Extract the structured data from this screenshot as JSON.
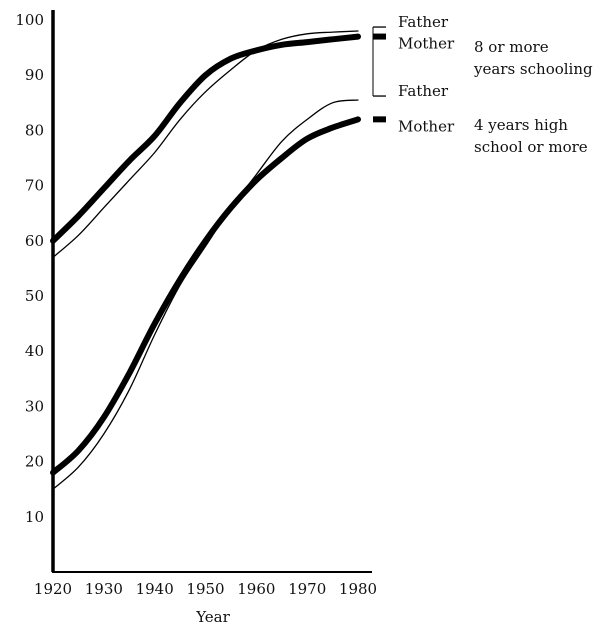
{
  "chart_data": {
    "type": "line",
    "title": "",
    "xlabel": "Year",
    "ylabel": "",
    "xlim": [
      1920,
      1980
    ],
    "ylim": [
      0,
      100
    ],
    "x_ticks": [
      "1920",
      "1930",
      "1940",
      "1950",
      "1960",
      "1970",
      "1980"
    ],
    "y_ticks": [
      "10",
      "20",
      "30",
      "40",
      "50",
      "60",
      "70",
      "80",
      "90",
      "100"
    ],
    "grid": false,
    "legend": "right, direct labels",
    "groups": [
      {
        "label_line1": "8 or more",
        "label_line2": "years schooling"
      },
      {
        "label_line1": "4 years high",
        "label_line2": "school or more"
      }
    ],
    "series": [
      {
        "name": "Father",
        "group": 0,
        "style": "thin",
        "x": [
          1920,
          1925,
          1930,
          1935,
          1940,
          1945,
          1950,
          1955,
          1960,
          1965,
          1970,
          1975,
          1980
        ],
        "y": [
          57,
          61,
          66,
          71,
          76,
          82,
          87,
          91,
          94.5,
          96.5,
          97.5,
          97.8,
          98
        ]
      },
      {
        "name": "Mother",
        "group": 0,
        "style": "thick",
        "x": [
          1920,
          1925,
          1930,
          1935,
          1940,
          1945,
          1950,
          1955,
          1960,
          1965,
          1970,
          1975,
          1980
        ],
        "y": [
          60,
          64.5,
          69.5,
          74.5,
          79,
          85,
          90,
          93,
          94.5,
          95.5,
          96,
          96.5,
          97
        ]
      },
      {
        "name": "Father",
        "group": 1,
        "style": "thin",
        "x": [
          1920,
          1925,
          1930,
          1935,
          1940,
          1945,
          1950,
          1955,
          1960,
          1965,
          1970,
          1975,
          1980
        ],
        "y": [
          15,
          19,
          25,
          33,
          43,
          52,
          59,
          66,
          72,
          78,
          82,
          85,
          85.5
        ]
      },
      {
        "name": "Mother",
        "group": 1,
        "style": "thick",
        "x": [
          1920,
          1925,
          1930,
          1935,
          1940,
          1945,
          1950,
          1955,
          1960,
          1965,
          1970,
          1975,
          1980
        ],
        "y": [
          18,
          22,
          28,
          36,
          45,
          53,
          60,
          66,
          71,
          75,
          78.5,
          80.5,
          82
        ]
      }
    ]
  }
}
